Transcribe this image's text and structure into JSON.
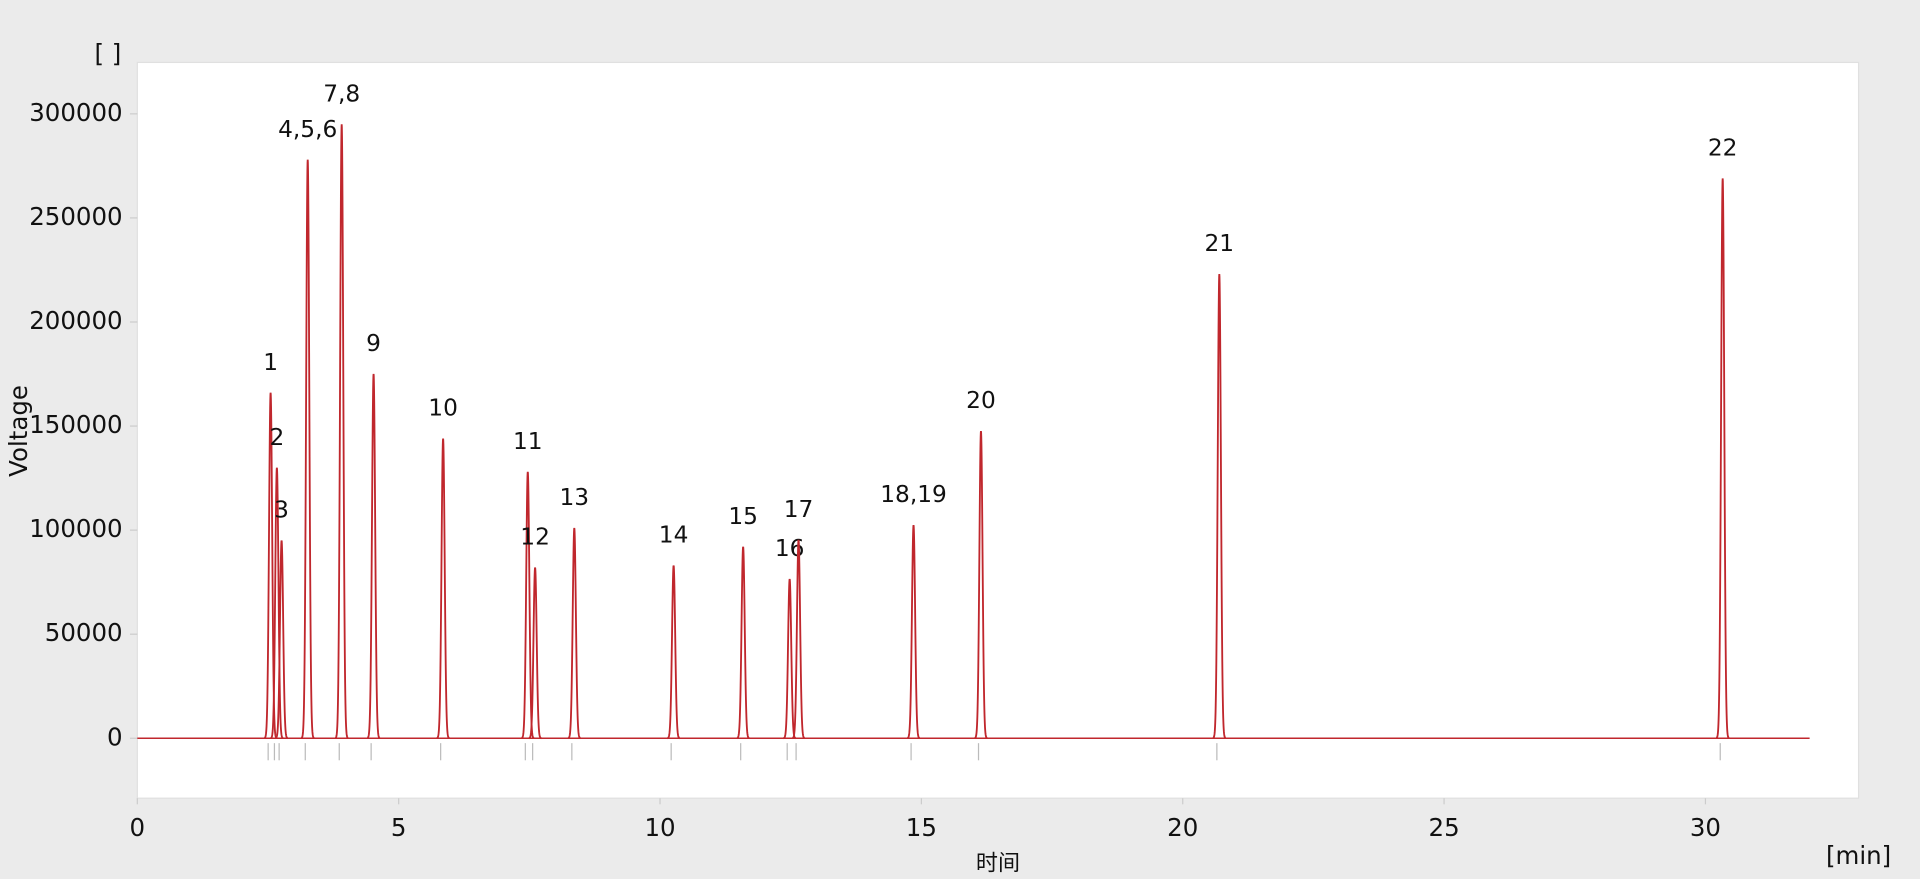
{
  "chart_data": {
    "type": "chromatogram",
    "y_unit_label": "[ ]",
    "ylabel": "Voltage",
    "xlabel": "时间",
    "x_unit_label": "[min]",
    "color": "#c0272d",
    "xlim": [
      0,
      32.93
    ],
    "ylim": [
      -28800,
      324700
    ],
    "xticks": [
      0,
      5,
      10,
      15,
      20,
      25,
      30
    ],
    "yticks": [
      0,
      50000,
      100000,
      150000,
      200000,
      250000,
      300000
    ],
    "grid": false,
    "peaks": [
      {
        "label": "1",
        "x": 2.55,
        "height": 166000
      },
      {
        "label": "2",
        "x": 2.67,
        "height": 130000
      },
      {
        "label": "3",
        "x": 2.76,
        "height": 95000
      },
      {
        "label": "4,5,6",
        "x": 3.26,
        "height": 278000
      },
      {
        "label": "7,8",
        "x": 3.91,
        "height": 295000
      },
      {
        "label": "9",
        "x": 4.52,
        "height": 175000
      },
      {
        "label": "10",
        "x": 5.85,
        "height": 144000
      },
      {
        "label": "11",
        "x": 7.47,
        "height": 128000
      },
      {
        "label": "12",
        "x": 7.61,
        "height": 82000
      },
      {
        "label": "13",
        "x": 8.36,
        "height": 101000
      },
      {
        "label": "14",
        "x": 10.26,
        "height": 83000
      },
      {
        "label": "15",
        "x": 11.59,
        "height": 92000
      },
      {
        "label": "16",
        "x": 12.48,
        "height": 76500
      },
      {
        "label": "17",
        "x": 12.65,
        "height": 95300
      },
      {
        "label": "18,19",
        "x": 14.85,
        "height": 102400
      },
      {
        "label": "20",
        "x": 16.14,
        "height": 147600
      },
      {
        "label": "21",
        "x": 20.7,
        "height": 223000
      },
      {
        "label": "22",
        "x": 30.33,
        "height": 269000
      }
    ]
  }
}
